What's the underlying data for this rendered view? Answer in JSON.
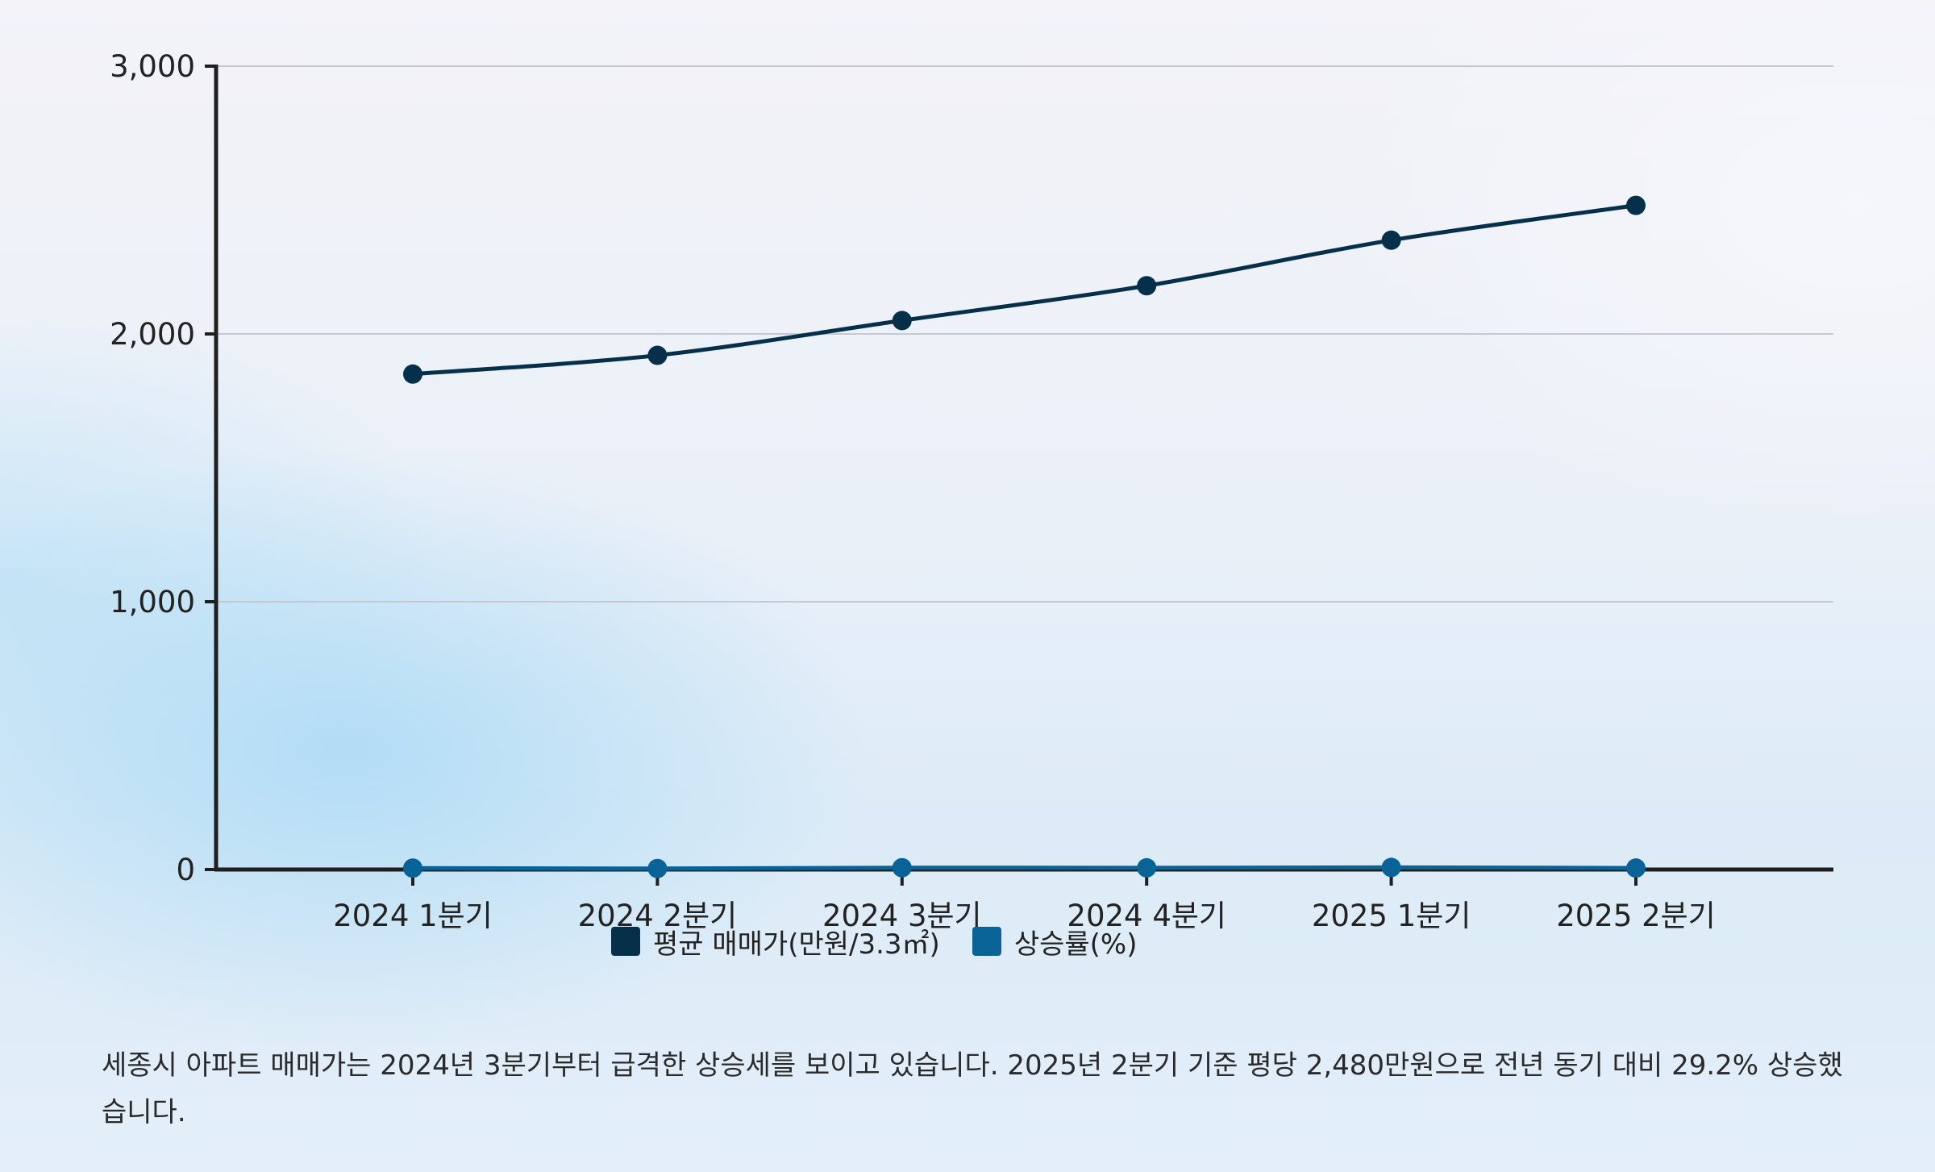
{
  "chart_data": {
    "type": "line",
    "categories": [
      "2024 1분기",
      "2024 2분기",
      "2024 3분기",
      "2024 4분기",
      "2025 1분기",
      "2025 2분기"
    ],
    "series": [
      {
        "name": "평균 매매가(만원/3.3㎡)",
        "values": [
          1850,
          1920,
          2050,
          2180,
          2350,
          2480
        ],
        "color": "#06304a"
      },
      {
        "name": "상승률(%)",
        "values": [
          5.2,
          3.8,
          6.8,
          6.3,
          7.8,
          5.5
        ],
        "color": "#0a6396"
      }
    ],
    "yticks": [
      0,
      1000,
      2000,
      3000
    ],
    "ytick_labels": [
      "0",
      "1,000",
      "2,000",
      "3,000"
    ],
    "ylim": [
      0,
      3000
    ],
    "grid": true,
    "legend_position": "bottom-center",
    "title": "",
    "xlabel": "",
    "ylabel": ""
  },
  "caption": "세종시 아파트 매매가는 2024년 3분기부터 급격한 상승세를 보이고 있습니다. 2025년 2분기 기준 평당 2,480만원으로 전년 동기 대비 29.2% 상승했습니다.",
  "colors": {
    "axis": "#1f1f1f",
    "grid": "#c4c9d2"
  }
}
